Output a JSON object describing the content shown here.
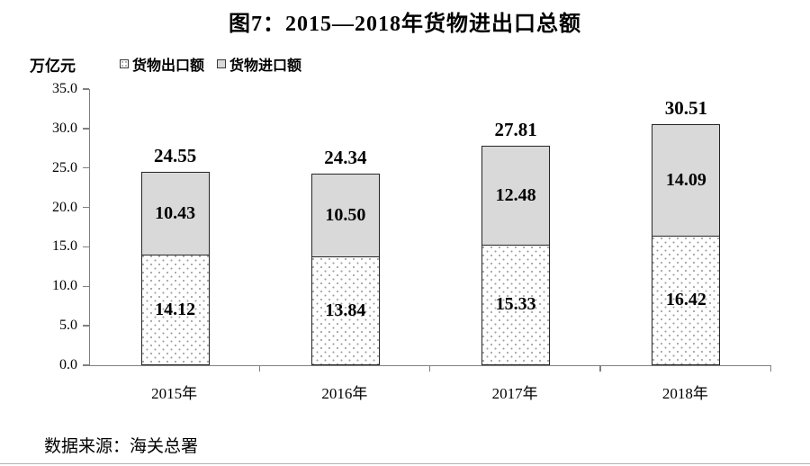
{
  "chart_data": {
    "type": "bar",
    "stacked": true,
    "title": "图7：2015—2018年货物进出口总额",
    "unit_label": "万亿元",
    "categories": [
      "2015年",
      "2016年",
      "2017年",
      "2018年"
    ],
    "series": [
      {
        "name": "货物出口额",
        "values": [
          14.12,
          13.84,
          15.33,
          16.42
        ],
        "labels": [
          "14.12",
          "13.84",
          "15.33",
          "16.42"
        ],
        "style": "dotted-white"
      },
      {
        "name": "货物进口额",
        "values": [
          10.43,
          10.5,
          12.48,
          14.09
        ],
        "labels": [
          "10.43",
          "10.50",
          "12.48",
          "14.09"
        ],
        "style": "solid-gray"
      }
    ],
    "totals": [
      "24.55",
      "24.34",
      "27.81",
      "30.51"
    ],
    "ylim": [
      0,
      35
    ],
    "ytick_labels": [
      "0.0",
      "5.0",
      "10.0",
      "15.0",
      "20.0",
      "25.0",
      "30.0",
      "35.0"
    ],
    "grid": false,
    "legend_position": "top-left"
  },
  "source_note": "数据来源：海关总署",
  "colors": {
    "import_fill": "#d9d9d9",
    "export_fill": "#ffffff",
    "export_dot": "#a0a0a0",
    "bar_border": "#262626",
    "axis": "#808080",
    "text": "#000000"
  }
}
